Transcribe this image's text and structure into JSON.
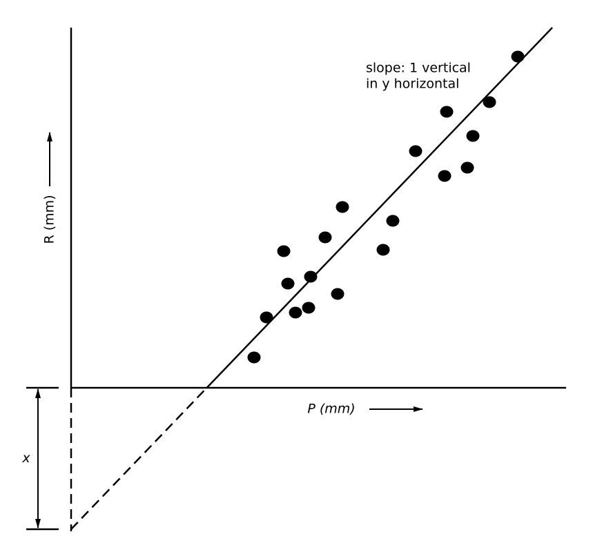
{
  "chart_data": {
    "type": "scatter",
    "annotation": [
      "slope: 1 vertical",
      "in y horizontal"
    ],
    "x_label": "P (mm)",
    "y_label": "R (mm)",
    "intercept_label": "x",
    "xlim": [
      0,
      71.7
    ],
    "ylim": [
      -20.8,
      52.2
    ],
    "color": "#000000",
    "x": [
      26.5,
      28.3,
      30.8,
      31.4,
      32.5,
      34.4,
      34.7,
      36.8,
      38.6,
      39.3,
      45.2,
      46.6,
      49.9,
      54.1,
      54.4,
      57.4,
      58.2,
      60.6,
      64.7
    ],
    "values": [
      4.4,
      10.2,
      19.8,
      15.1,
      10.9,
      11.6,
      16.1,
      21.8,
      13.6,
      26.2,
      20,
      24.2,
      34.3,
      30.7,
      40,
      31.9,
      36.5,
      41.4,
      48
    ],
    "fit": {
      "slope": 1.043,
      "intercept": -20.5
    }
  }
}
